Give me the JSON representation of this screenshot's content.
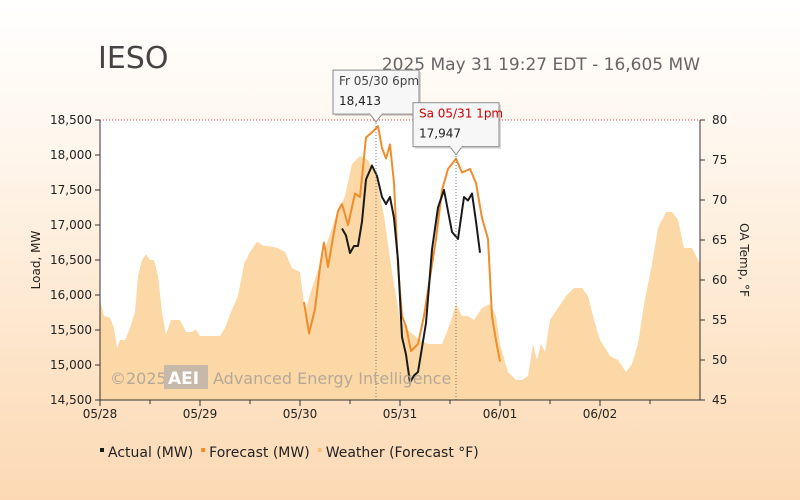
{
  "chart_data": {
    "type": "line",
    "title": "IESO",
    "subtitle": "2025 May 31 19:27 EDT - 16,605 MW",
    "ylabel": "Load, MW",
    "y2label": "OA Temp, °F",
    "ylim": [
      14500,
      18500
    ],
    "y2lim": [
      45,
      80
    ],
    "xlim": [
      0,
      6
    ],
    "x_ticks": [
      {
        "x": 0,
        "label": "05/28"
      },
      {
        "x": 1,
        "label": "05/29"
      },
      {
        "x": 2,
        "label": "05/30"
      },
      {
        "x": 3,
        "label": "05/31"
      },
      {
        "x": 4,
        "label": "06/01"
      },
      {
        "x": 5,
        "label": "06/02"
      }
    ],
    "y_ticks": [
      {
        "v": 14500,
        "label": "14,500"
      },
      {
        "v": 15000,
        "label": "15,000"
      },
      {
        "v": 15500,
        "label": "15,500"
      },
      {
        "v": 16000,
        "label": "16,000"
      },
      {
        "v": 16500,
        "label": "16,500"
      },
      {
        "v": 17000,
        "label": "17,000"
      },
      {
        "v": 17500,
        "label": "17,500"
      },
      {
        "v": 18000,
        "label": "18,000"
      },
      {
        "v": 18500,
        "label": "18,500"
      }
    ],
    "y2_ticks": [
      {
        "v": 45,
        "label": "45"
      },
      {
        "v": 50,
        "label": "50"
      },
      {
        "v": 55,
        "label": "55"
      },
      {
        "v": 60,
        "label": "60"
      },
      {
        "v": 65,
        "label": "65"
      },
      {
        "v": 70,
        "label": "70"
      },
      {
        "v": 75,
        "label": "75"
      },
      {
        "v": 80,
        "label": "80"
      }
    ],
    "series": [
      {
        "name": "Weather (Forecast °F)",
        "axis": "right",
        "color": "#fbd8a6",
        "style": "area",
        "points": [
          [
            0.0,
            57.5
          ],
          [
            0.04,
            55.5
          ],
          [
            0.1,
            55.3
          ],
          [
            0.14,
            54.0
          ],
          [
            0.17,
            51.5
          ],
          [
            0.2,
            52.5
          ],
          [
            0.25,
            52.5
          ],
          [
            0.3,
            54.0
          ],
          [
            0.35,
            56.0
          ],
          [
            0.38,
            60.5
          ],
          [
            0.42,
            62.5
          ],
          [
            0.46,
            63.2
          ],
          [
            0.5,
            62.5
          ],
          [
            0.54,
            62.5
          ],
          [
            0.58,
            60.5
          ],
          [
            0.62,
            56.0
          ],
          [
            0.66,
            53.2
          ],
          [
            0.71,
            55.0
          ],
          [
            0.76,
            55.0
          ],
          [
            0.8,
            55.0
          ],
          [
            0.86,
            53.5
          ],
          [
            0.92,
            53.5
          ],
          [
            0.96,
            53.8
          ],
          [
            1.0,
            53.0
          ],
          [
            1.05,
            53.0
          ],
          [
            1.1,
            53.0
          ],
          [
            1.15,
            53.0
          ],
          [
            1.2,
            53.0
          ],
          [
            1.25,
            54.0
          ],
          [
            1.31,
            56.0
          ],
          [
            1.38,
            58.0
          ],
          [
            1.44,
            62.0
          ],
          [
            1.5,
            63.5
          ],
          [
            1.57,
            64.8
          ],
          [
            1.63,
            64.3
          ],
          [
            1.7,
            64.2
          ],
          [
            1.78,
            64.0
          ],
          [
            1.85,
            63.5
          ],
          [
            1.92,
            61.5
          ],
          [
            2.0,
            61.0
          ],
          [
            2.05,
            56.0
          ],
          [
            2.12,
            59.0
          ],
          [
            2.2,
            62.0
          ],
          [
            2.28,
            65.0
          ],
          [
            2.36,
            68.0
          ],
          [
            2.45,
            70.5
          ],
          [
            2.52,
            74.5
          ],
          [
            2.6,
            75.5
          ],
          [
            2.68,
            75.0
          ],
          [
            2.76,
            73.0
          ],
          [
            2.84,
            68.0
          ],
          [
            2.92,
            61.0
          ],
          [
            3.0,
            55.0
          ],
          [
            3.1,
            53.5
          ],
          [
            3.2,
            52.5
          ],
          [
            3.28,
            52.0
          ],
          [
            3.35,
            52.0
          ],
          [
            3.42,
            52.0
          ],
          [
            3.5,
            54.5
          ],
          [
            3.56,
            57.0
          ],
          [
            3.62,
            55.5
          ],
          [
            3.68,
            55.5
          ],
          [
            3.74,
            55.0
          ],
          [
            3.82,
            56.5
          ],
          [
            3.9,
            57.0
          ],
          [
            3.96,
            55.5
          ],
          [
            4.0,
            52.0
          ],
          [
            4.08,
            48.5
          ],
          [
            4.16,
            47.5
          ],
          [
            4.22,
            47.5
          ],
          [
            4.28,
            48.0
          ],
          [
            4.33,
            52.0
          ],
          [
            4.37,
            50.0
          ],
          [
            4.41,
            52.0
          ],
          [
            4.45,
            51.0
          ],
          [
            4.5,
            55.0
          ],
          [
            4.58,
            56.5
          ],
          [
            4.66,
            58.0
          ],
          [
            4.74,
            59.0
          ],
          [
            4.82,
            59.0
          ],
          [
            4.88,
            58.0
          ],
          [
            4.94,
            55.0
          ],
          [
            5.0,
            52.5
          ],
          [
            5.1,
            50.5
          ],
          [
            5.18,
            50.0
          ],
          [
            5.26,
            48.5
          ],
          [
            5.32,
            49.5
          ],
          [
            5.38,
            52.0
          ],
          [
            5.44,
            57.0
          ],
          [
            5.52,
            62.0
          ],
          [
            5.58,
            66.5
          ],
          [
            5.66,
            68.5
          ],
          [
            5.72,
            68.5
          ],
          [
            5.78,
            67.5
          ],
          [
            5.84,
            64.0
          ],
          [
            5.92,
            64.0
          ],
          [
            6.0,
            62.0
          ]
        ]
      },
      {
        "name": "Forecast (MW)",
        "axis": "left",
        "color": "#f08c2a",
        "style": "line",
        "points": [
          [
            2.04,
            15900
          ],
          [
            2.09,
            15450
          ],
          [
            2.15,
            15800
          ],
          [
            2.2,
            16400
          ],
          [
            2.24,
            16750
          ],
          [
            2.28,
            16400
          ],
          [
            2.34,
            16900
          ],
          [
            2.38,
            17200
          ],
          [
            2.42,
            17300
          ],
          [
            2.48,
            17000
          ],
          [
            2.55,
            17450
          ],
          [
            2.6,
            17400
          ],
          [
            2.66,
            18250
          ],
          [
            2.7,
            18300
          ],
          [
            2.74,
            18350
          ],
          [
            2.78,
            18413
          ],
          [
            2.82,
            18100
          ],
          [
            2.86,
            17950
          ],
          [
            2.9,
            18150
          ],
          [
            2.94,
            17600
          ],
          [
            2.98,
            16400
          ],
          [
            3.02,
            15700
          ],
          [
            3.06,
            15550
          ],
          [
            3.11,
            15200
          ],
          [
            3.18,
            15300
          ],
          [
            3.24,
            15700
          ],
          [
            3.3,
            16250
          ],
          [
            3.36,
            16800
          ],
          [
            3.42,
            17500
          ],
          [
            3.48,
            17800
          ],
          [
            3.56,
            17947
          ],
          [
            3.62,
            17750
          ],
          [
            3.7,
            17800
          ],
          [
            3.76,
            17600
          ],
          [
            3.82,
            17100
          ],
          [
            3.88,
            16800
          ],
          [
            3.92,
            15700
          ],
          [
            3.96,
            15350
          ],
          [
            4.0,
            15050
          ]
        ]
      },
      {
        "name": "Actual (MW)",
        "axis": "left",
        "color": "#1a1a1a",
        "style": "line",
        "points": [
          [
            2.42,
            16950
          ],
          [
            2.46,
            16850
          ],
          [
            2.5,
            16600
          ],
          [
            2.54,
            16700
          ],
          [
            2.58,
            16700
          ],
          [
            2.62,
            17050
          ],
          [
            2.66,
            17650
          ],
          [
            2.72,
            17850
          ],
          [
            2.77,
            17700
          ],
          [
            2.82,
            17400
          ],
          [
            2.86,
            17300
          ],
          [
            2.9,
            17400
          ],
          [
            2.94,
            17100
          ],
          [
            2.98,
            16500
          ],
          [
            3.02,
            15400
          ],
          [
            3.06,
            15150
          ],
          [
            3.1,
            14750
          ],
          [
            3.14,
            14850
          ],
          [
            3.18,
            14900
          ],
          [
            3.22,
            15250
          ],
          [
            3.26,
            15600
          ],
          [
            3.32,
            16650
          ],
          [
            3.38,
            17250
          ],
          [
            3.44,
            17500
          ],
          [
            3.48,
            17200
          ],
          [
            3.52,
            16900
          ],
          [
            3.58,
            16800
          ],
          [
            3.64,
            17400
          ],
          [
            3.68,
            17350
          ],
          [
            3.72,
            17450
          ],
          [
            3.76,
            17050
          ],
          [
            3.8,
            16605
          ]
        ]
      }
    ],
    "cursor_lines": [
      2.76,
      3.56
    ],
    "tooltips": [
      {
        "at_x": 2.76,
        "at_y": 18413,
        "label": "Fr 05/30 6pm",
        "value": "18,413",
        "label_color": "#444444"
      },
      {
        "at_x": 3.56,
        "at_y": 17947,
        "label": "Sa 05/31 1pm",
        "value": "17,947",
        "label_color": "#cc0000"
      }
    ],
    "legend": {
      "placement": "bottom-left",
      "items": [
        {
          "label": "Actual (MW)",
          "color": "#1a1a1a"
        },
        {
          "label": "Forecast (MW)",
          "color": "#f08c2a"
        },
        {
          "label": "Weather (Forecast °F)",
          "color": "#fbc27a"
        }
      ]
    },
    "grid": {
      "horizontal_dotted": false,
      "top_border_dotted": true,
      "color": "#e04040"
    },
    "watermark": {
      "copyright": "©2025",
      "logo": "AEI",
      "text": "Advanced Energy Intelligence"
    }
  }
}
